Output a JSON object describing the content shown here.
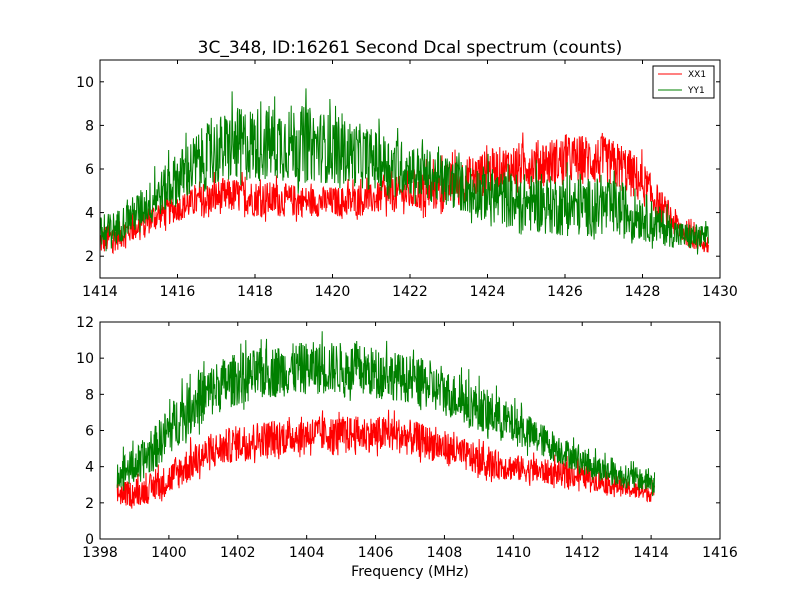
{
  "chart_data": [
    {
      "type": "line",
      "title": "3C_348, ID:16261 Second Dcal spectrum (counts)",
      "xlabel": "",
      "ylabel": "",
      "xlim": [
        1414,
        1430
      ],
      "ylim": [
        1,
        11
      ],
      "xticks": [
        1414,
        1416,
        1418,
        1420,
        1422,
        1424,
        1426,
        1428,
        1430
      ],
      "yticks": [
        2,
        4,
        6,
        8,
        10
      ],
      "legend": {
        "placement": "top-right",
        "entries": [
          "XX1",
          "YY1"
        ]
      },
      "x_range_data": [
        1414.0,
        1429.7
      ],
      "series": [
        {
          "name": "XX1",
          "color": "#ff0000",
          "envelope_x": [
            1414.0,
            1414.5,
            1415.0,
            1415.5,
            1416.0,
            1416.5,
            1417.0,
            1417.5,
            1418.0,
            1418.5,
            1419.0,
            1419.5,
            1420.0,
            1420.5,
            1421.0,
            1421.5,
            1422.0,
            1422.5,
            1423.0,
            1423.5,
            1424.0,
            1424.5,
            1425.0,
            1425.5,
            1426.0,
            1426.5,
            1427.0,
            1427.5,
            1428.0,
            1428.5,
            1429.0,
            1429.7
          ],
          "envelope_low": [
            2.0,
            2.3,
            2.8,
            3.2,
            3.6,
            3.8,
            3.9,
            4.0,
            3.8,
            3.8,
            3.8,
            3.8,
            3.8,
            3.8,
            3.9,
            4.0,
            4.0,
            4.0,
            4.2,
            4.5,
            4.8,
            5.0,
            5.2,
            5.2,
            5.3,
            5.3,
            5.2,
            4.9,
            4.3,
            3.4,
            2.6,
            2.0
          ],
          "envelope_high": [
            3.4,
            3.6,
            4.0,
            4.6,
            4.8,
            5.2,
            5.5,
            5.6,
            5.5,
            5.4,
            5.3,
            5.2,
            5.2,
            5.2,
            5.3,
            5.6,
            5.8,
            6.0,
            6.3,
            6.6,
            6.9,
            7.1,
            7.3,
            7.4,
            7.5,
            7.6,
            7.5,
            7.2,
            6.4,
            5.0,
            3.8,
            3.0
          ]
        },
        {
          "name": "YY1",
          "color": "#008000",
          "envelope_x": [
            1414.0,
            1414.5,
            1415.0,
            1415.5,
            1416.0,
            1416.5,
            1417.0,
            1417.5,
            1418.0,
            1418.5,
            1419.0,
            1419.5,
            1420.0,
            1420.5,
            1421.0,
            1421.5,
            1422.0,
            1422.5,
            1423.0,
            1423.5,
            1424.0,
            1424.5,
            1425.0,
            1425.5,
            1426.0,
            1426.5,
            1427.0,
            1427.5,
            1428.0,
            1428.5,
            1429.0,
            1429.7
          ],
          "envelope_low": [
            2.2,
            2.6,
            3.2,
            3.8,
            4.3,
            4.8,
            5.2,
            5.4,
            5.4,
            5.4,
            5.4,
            5.4,
            5.3,
            5.2,
            5.0,
            4.9,
            4.8,
            4.5,
            4.2,
            3.9,
            3.6,
            3.3,
            3.1,
            3.0,
            2.9,
            2.9,
            2.9,
            2.8,
            2.7,
            2.5,
            2.3,
            2.2
          ],
          "envelope_high": [
            3.8,
            4.2,
            5.0,
            5.8,
            6.8,
            7.7,
            8.4,
            8.8,
            8.9,
            9.0,
            9.0,
            8.8,
            8.5,
            8.2,
            7.9,
            7.5,
            7.2,
            6.9,
            6.6,
            6.3,
            6.1,
            5.9,
            5.8,
            5.7,
            5.7,
            5.6,
            5.6,
            5.4,
            5.0,
            4.2,
            3.6,
            3.4
          ]
        }
      ]
    },
    {
      "type": "line",
      "title": "",
      "xlabel": "Frequency (MHz)",
      "ylabel": "",
      "xlim": [
        1398,
        1416
      ],
      "ylim": [
        0,
        12
      ],
      "xticks": [
        1398,
        1400,
        1402,
        1404,
        1406,
        1408,
        1410,
        1412,
        1414,
        1416
      ],
      "yticks": [
        0,
        2,
        4,
        6,
        8,
        10,
        12
      ],
      "x_range_data": [
        1398.5,
        1414.1
      ],
      "series": [
        {
          "name": "XX1",
          "color": "#ff0000",
          "envelope_x": [
            1398.5,
            1399.0,
            1399.5,
            1400.0,
            1400.5,
            1401.0,
            1401.5,
            1402.0,
            1402.5,
            1403.0,
            1403.5,
            1404.0,
            1404.5,
            1405.0,
            1405.5,
            1406.0,
            1406.5,
            1407.0,
            1407.5,
            1408.0,
            1408.5,
            1409.0,
            1409.5,
            1410.0,
            1410.5,
            1411.0,
            1411.5,
            1412.0,
            1412.5,
            1413.0,
            1413.5,
            1414.1
          ],
          "envelope_low": [
            1.8,
            1.8,
            2.0,
            2.4,
            3.0,
            3.6,
            4.0,
            4.3,
            4.5,
            4.6,
            4.7,
            4.8,
            4.8,
            4.8,
            4.8,
            4.8,
            4.8,
            4.6,
            4.4,
            4.1,
            3.8,
            3.5,
            3.3,
            3.2,
            3.1,
            3.0,
            2.9,
            2.8,
            2.6,
            2.4,
            2.2,
            2.0
          ],
          "envelope_high": [
            3.2,
            3.2,
            3.6,
            4.2,
            5.0,
            5.6,
            6.0,
            6.3,
            6.5,
            6.6,
            6.7,
            6.8,
            6.8,
            6.8,
            6.8,
            6.8,
            6.8,
            6.6,
            6.3,
            6.0,
            5.6,
            5.2,
            4.9,
            4.7,
            4.5,
            4.4,
            4.3,
            4.1,
            3.8,
            3.5,
            3.2,
            3.0
          ]
        },
        {
          "name": "YY1",
          "color": "#008000",
          "envelope_x": [
            1398.5,
            1399.0,
            1399.5,
            1400.0,
            1400.5,
            1401.0,
            1401.5,
            1402.0,
            1402.5,
            1403.0,
            1403.5,
            1404.0,
            1404.5,
            1405.0,
            1405.5,
            1406.0,
            1406.5,
            1407.0,
            1407.5,
            1408.0,
            1408.5,
            1409.0,
            1409.5,
            1410.0,
            1410.5,
            1411.0,
            1411.5,
            1412.0,
            1412.5,
            1413.0,
            1413.5,
            1414.1
          ],
          "envelope_low": [
            2.8,
            3.0,
            3.6,
            4.6,
            5.6,
            6.4,
            7.0,
            7.4,
            7.6,
            7.8,
            7.9,
            8.0,
            8.0,
            8.0,
            7.9,
            7.8,
            7.7,
            7.5,
            7.2,
            6.8,
            6.4,
            6.0,
            5.6,
            5.2,
            4.8,
            4.4,
            4.0,
            3.6,
            3.2,
            2.9,
            2.7,
            2.5
          ],
          "envelope_high": [
            4.6,
            5.0,
            6.0,
            7.4,
            8.6,
            9.4,
            10.0,
            10.3,
            10.5,
            10.7,
            10.8,
            10.9,
            10.9,
            10.9,
            10.8,
            10.6,
            10.4,
            10.1,
            9.8,
            9.4,
            9.0,
            8.5,
            8.0,
            7.4,
            6.8,
            6.2,
            5.6,
            5.0,
            4.6,
            4.2,
            4.0,
            3.8
          ]
        }
      ]
    }
  ]
}
